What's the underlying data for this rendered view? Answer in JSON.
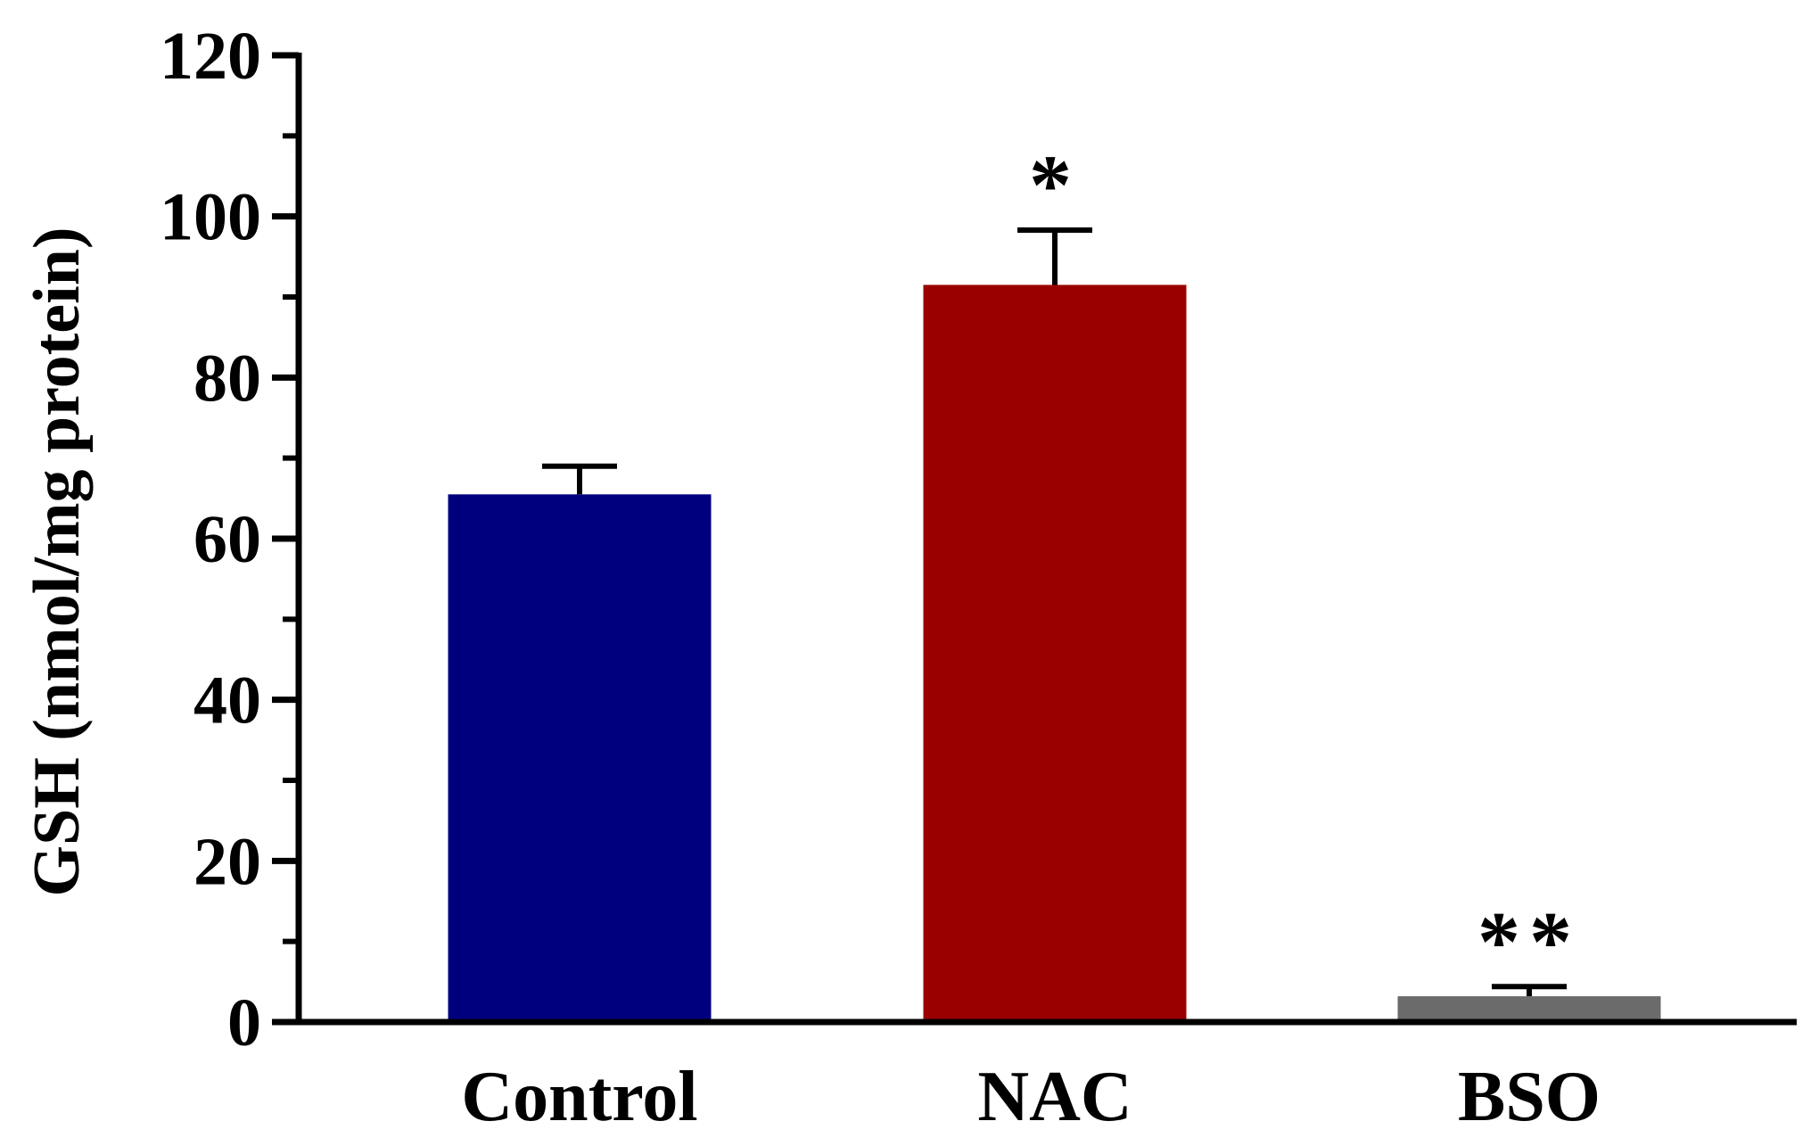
{
  "chart_data": {
    "type": "bar",
    "title": "",
    "xlabel": "",
    "ylabel": "GSH (nmol/mg protein)",
    "ylim": [
      0,
      120
    ],
    "yticks": [
      0,
      20,
      40,
      60,
      80,
      100,
      120
    ],
    "minor_tick_step": 10,
    "grid": false,
    "legend": "none",
    "categories": [
      "Control",
      "NAC",
      "BSO"
    ],
    "values": [
      65.5,
      91.5,
      3.2
    ],
    "errors": [
      3.5,
      6.8,
      1.2
    ],
    "colors": [
      "#00007f",
      "#9b0000",
      "#6b6b6b"
    ],
    "annotations": [
      "",
      "*",
      "**"
    ]
  }
}
